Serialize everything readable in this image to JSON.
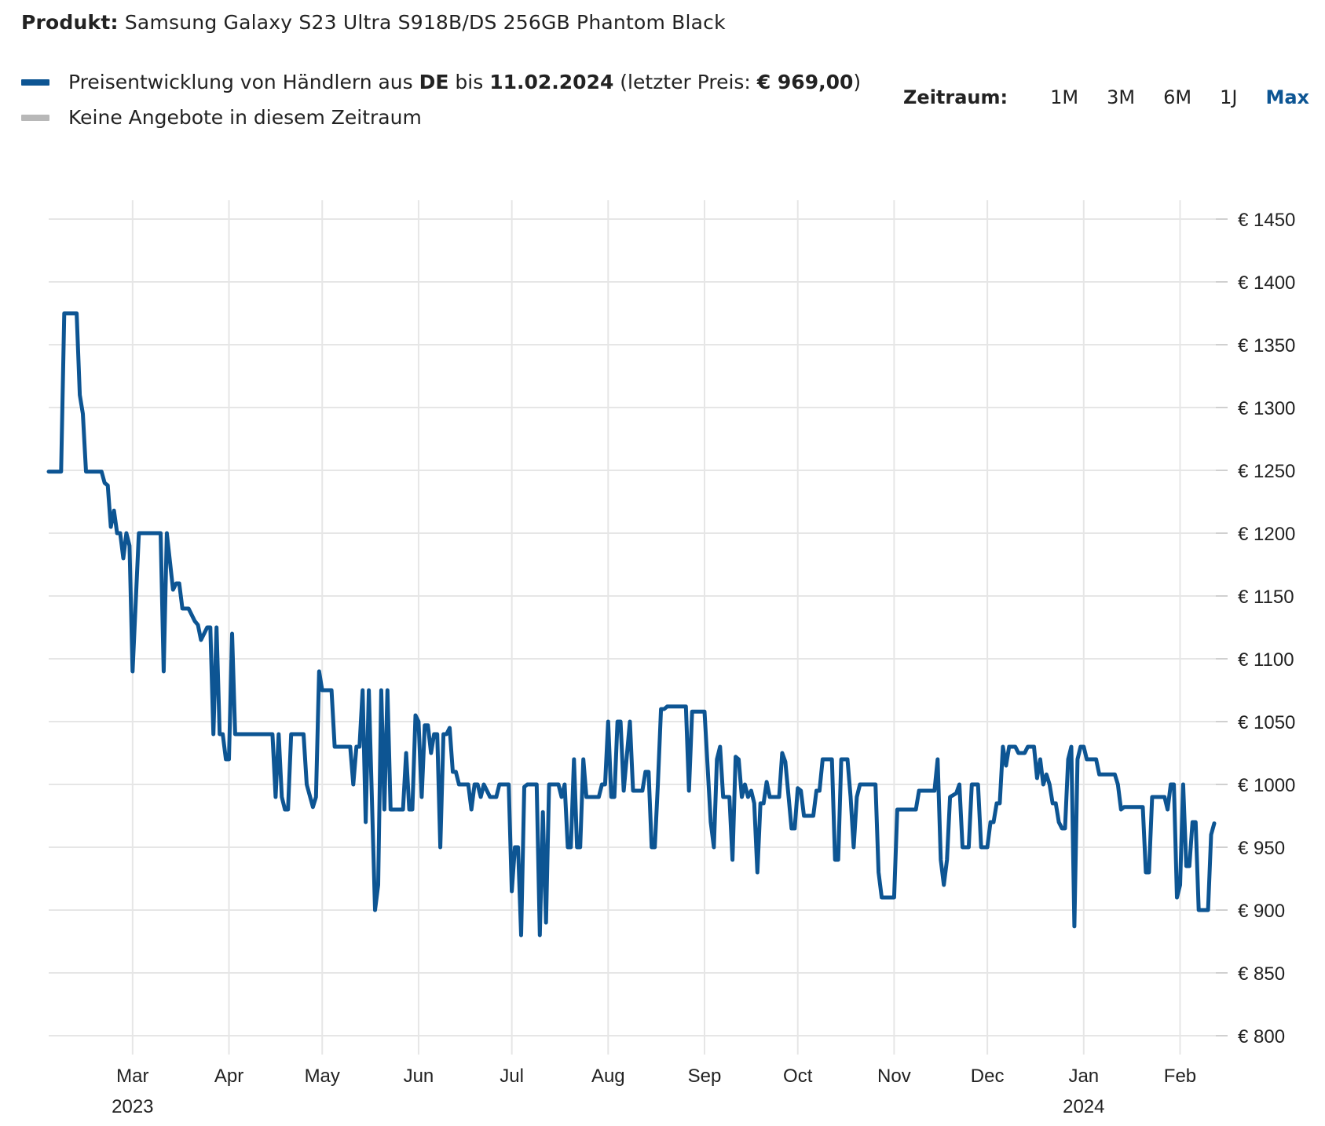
{
  "header": {
    "product_label": "Produkt:",
    "product_name": "Samsung Galaxy S23 Ultra S918B/DS 256GB Phantom Black"
  },
  "legend": {
    "items": [
      {
        "text_1": "Preisentwicklung von Händlern aus ",
        "bold_1": "DE",
        "text_2": " bis ",
        "bold_2": "11.02.2024",
        "text_3": " (letzter Preis: ",
        "bold_3": "€ 969,00",
        "text_4": ")",
        "color": "#0d5593"
      },
      {
        "text": "Keine Angebote in diesem Zeitraum",
        "color": "#b8b8b8"
      }
    ]
  },
  "range_selector": {
    "label": "Zeitraum:",
    "options": [
      "1M",
      "3M",
      "6M",
      "1J",
      "Max"
    ],
    "active": "Max"
  },
  "chart_data": {
    "type": "line",
    "x_type": "date",
    "xlim": [
      "2023-02-02",
      "2024-02-12"
    ],
    "ylim": [
      785,
      1465
    ],
    "y_ticks": [
      800,
      850,
      900,
      950,
      1000,
      1050,
      1100,
      1150,
      1200,
      1250,
      1300,
      1350,
      1400,
      1450
    ],
    "y_tick_labels": [
      "€ 800",
      "€ 850",
      "€ 900",
      "€ 950",
      "€ 1000",
      "€ 1050",
      "€ 1100",
      "€ 1150",
      "€ 1200",
      "€ 1250",
      "€ 1300",
      "€ 1350",
      "€ 1400",
      "€ 1450"
    ],
    "x_ticks": [
      "2023-03-01",
      "2023-04-01",
      "2023-05-01",
      "2023-06-01",
      "2023-07-01",
      "2023-08-01",
      "2023-09-01",
      "2023-10-01",
      "2023-11-01",
      "2023-12-01",
      "2024-01-01",
      "2024-02-01"
    ],
    "x_tick_labels": [
      "Mar",
      "Apr",
      "May",
      "Jun",
      "Jul",
      "Aug",
      "Sep",
      "Oct",
      "Nov",
      "Dec",
      "Jan",
      "Feb"
    ],
    "year_labels": [
      {
        "at": "2023-03-01",
        "label": "2023"
      },
      {
        "at": "2024-01-01",
        "label": "2024"
      }
    ],
    "grid": true,
    "series": [
      {
        "color": "#0d5593",
        "points": [
          [
            "2023-02-02",
            1249
          ],
          [
            "2023-02-06",
            1249
          ],
          [
            "2023-02-07",
            1375
          ],
          [
            "2023-02-11",
            1375
          ],
          [
            "2023-02-12",
            1310
          ],
          [
            "2023-02-13",
            1295
          ],
          [
            "2023-02-14",
            1249
          ],
          [
            "2023-02-19",
            1249
          ],
          [
            "2023-02-20",
            1240
          ],
          [
            "2023-02-21",
            1238
          ],
          [
            "2023-02-22",
            1205
          ],
          [
            "2023-02-23",
            1218
          ],
          [
            "2023-02-24",
            1200
          ],
          [
            "2023-02-25",
            1200
          ],
          [
            "2023-02-26",
            1180
          ],
          [
            "2023-02-27",
            1200
          ],
          [
            "2023-02-28",
            1190
          ],
          [
            "2023-03-01",
            1090
          ],
          [
            "2023-03-03",
            1200
          ],
          [
            "2023-03-10",
            1200
          ],
          [
            "2023-03-11",
            1090
          ],
          [
            "2023-03-12",
            1200
          ],
          [
            "2023-03-14",
            1155
          ],
          [
            "2023-03-15",
            1160
          ],
          [
            "2023-03-16",
            1160
          ],
          [
            "2023-03-17",
            1140
          ],
          [
            "2023-03-19",
            1140
          ],
          [
            "2023-03-21",
            1130
          ],
          [
            "2023-03-22",
            1127
          ],
          [
            "2023-03-23",
            1115
          ],
          [
            "2023-03-25",
            1125
          ],
          [
            "2023-03-26",
            1125
          ],
          [
            "2023-03-27",
            1040
          ],
          [
            "2023-03-28",
            1125
          ],
          [
            "2023-03-29",
            1040
          ],
          [
            "2023-03-30",
            1040
          ],
          [
            "2023-03-31",
            1020
          ],
          [
            "2023-04-01",
            1020
          ],
          [
            "2023-04-02",
            1120
          ],
          [
            "2023-04-03",
            1040
          ],
          [
            "2023-04-15",
            1040
          ],
          [
            "2023-04-16",
            990
          ],
          [
            "2023-04-17",
            1040
          ],
          [
            "2023-04-18",
            990
          ],
          [
            "2023-04-19",
            980
          ],
          [
            "2023-04-20",
            980
          ],
          [
            "2023-04-21",
            1040
          ],
          [
            "2023-04-25",
            1040
          ],
          [
            "2023-04-26",
            1000
          ],
          [
            "2023-04-28",
            982
          ],
          [
            "2023-04-29",
            990
          ],
          [
            "2023-04-30",
            1090
          ],
          [
            "2023-05-01",
            1075
          ],
          [
            "2023-05-04",
            1075
          ],
          [
            "2023-05-05",
            1030
          ],
          [
            "2023-05-10",
            1030
          ],
          [
            "2023-05-11",
            1000
          ],
          [
            "2023-05-12",
            1030
          ],
          [
            "2023-05-13",
            1030
          ],
          [
            "2023-05-14",
            1075
          ],
          [
            "2023-05-15",
            970
          ],
          [
            "2023-05-16",
            1075
          ],
          [
            "2023-05-18",
            900
          ],
          [
            "2023-05-19",
            920
          ],
          [
            "2023-05-20",
            1075
          ],
          [
            "2023-05-21",
            980
          ],
          [
            "2023-05-22",
            1075
          ],
          [
            "2023-05-23",
            980
          ],
          [
            "2023-05-27",
            980
          ],
          [
            "2023-05-28",
            1025
          ],
          [
            "2023-05-29",
            980
          ],
          [
            "2023-05-30",
            980
          ],
          [
            "2023-05-31",
            1055
          ],
          [
            "2023-06-01",
            1050
          ],
          [
            "2023-06-02",
            990
          ],
          [
            "2023-06-03",
            1047
          ],
          [
            "2023-06-04",
            1047
          ],
          [
            "2023-06-05",
            1025
          ],
          [
            "2023-06-06",
            1040
          ],
          [
            "2023-06-07",
            1040
          ],
          [
            "2023-06-08",
            950
          ],
          [
            "2023-06-09",
            1040
          ],
          [
            "2023-06-10",
            1040
          ],
          [
            "2023-06-11",
            1045
          ],
          [
            "2023-06-12",
            1010
          ],
          [
            "2023-06-13",
            1010
          ],
          [
            "2023-06-14",
            1000
          ],
          [
            "2023-06-17",
            1000
          ],
          [
            "2023-06-18",
            980
          ],
          [
            "2023-06-19",
            1000
          ],
          [
            "2023-06-20",
            1000
          ],
          [
            "2023-06-21",
            990
          ],
          [
            "2023-06-22",
            1000
          ],
          [
            "2023-06-24",
            990
          ],
          [
            "2023-06-26",
            990
          ],
          [
            "2023-06-27",
            1000
          ],
          [
            "2023-06-30",
            1000
          ],
          [
            "2023-07-01",
            915
          ],
          [
            "2023-07-02",
            950
          ],
          [
            "2023-07-03",
            950
          ],
          [
            "2023-07-04",
            880
          ],
          [
            "2023-07-05",
            998
          ],
          [
            "2023-07-06",
            1000
          ],
          [
            "2023-07-09",
            1000
          ],
          [
            "2023-07-10",
            880
          ],
          [
            "2023-07-11",
            978
          ],
          [
            "2023-07-12",
            890
          ],
          [
            "2023-07-13",
            1000
          ],
          [
            "2023-07-16",
            1000
          ],
          [
            "2023-07-17",
            990
          ],
          [
            "2023-07-18",
            1000
          ],
          [
            "2023-07-19",
            950
          ],
          [
            "2023-07-20",
            950
          ],
          [
            "2023-07-21",
            1020
          ],
          [
            "2023-07-22",
            950
          ],
          [
            "2023-07-23",
            950
          ],
          [
            "2023-07-24",
            1020
          ],
          [
            "2023-07-25",
            990
          ],
          [
            "2023-07-29",
            990
          ],
          [
            "2023-07-30",
            1000
          ],
          [
            "2023-07-31",
            1000
          ],
          [
            "2023-08-01",
            1050
          ],
          [
            "2023-08-02",
            990
          ],
          [
            "2023-08-03",
            990
          ],
          [
            "2023-08-04",
            1050
          ],
          [
            "2023-08-05",
            1050
          ],
          [
            "2023-08-06",
            995
          ],
          [
            "2023-08-08",
            1050
          ],
          [
            "2023-08-09",
            995
          ],
          [
            "2023-08-12",
            995
          ],
          [
            "2023-08-13",
            1010
          ],
          [
            "2023-08-14",
            1010
          ],
          [
            "2023-08-15",
            950
          ],
          [
            "2023-08-16",
            950
          ],
          [
            "2023-08-17",
            1000
          ],
          [
            "2023-08-18",
            1060
          ],
          [
            "2023-08-19",
            1060
          ],
          [
            "2023-08-20",
            1062
          ],
          [
            "2023-08-26",
            1062
          ],
          [
            "2023-08-27",
            995
          ],
          [
            "2023-08-28",
            1058
          ],
          [
            "2023-09-01",
            1058
          ],
          [
            "2023-09-03",
            970
          ],
          [
            "2023-09-04",
            950
          ],
          [
            "2023-09-05",
            1020
          ],
          [
            "2023-09-06",
            1030
          ],
          [
            "2023-09-07",
            990
          ],
          [
            "2023-09-09",
            990
          ],
          [
            "2023-09-10",
            940
          ],
          [
            "2023-09-11",
            1022
          ],
          [
            "2023-09-12",
            1020
          ],
          [
            "2023-09-13",
            990
          ],
          [
            "2023-09-14",
            1000
          ],
          [
            "2023-09-15",
            990
          ],
          [
            "2023-09-16",
            995
          ],
          [
            "2023-09-17",
            985
          ],
          [
            "2023-09-18",
            930
          ],
          [
            "2023-09-19",
            985
          ],
          [
            "2023-09-20",
            985
          ],
          [
            "2023-09-21",
            1002
          ],
          [
            "2023-09-22",
            990
          ],
          [
            "2023-09-25",
            990
          ],
          [
            "2023-09-26",
            1025
          ],
          [
            "2023-09-27",
            1018
          ],
          [
            "2023-09-29",
            965
          ],
          [
            "2023-09-30",
            965
          ],
          [
            "2023-10-01",
            997
          ],
          [
            "2023-10-02",
            995
          ],
          [
            "2023-10-03",
            975
          ],
          [
            "2023-10-06",
            975
          ],
          [
            "2023-10-07",
            995
          ],
          [
            "2023-10-08",
            995
          ],
          [
            "2023-10-09",
            1020
          ],
          [
            "2023-10-12",
            1020
          ],
          [
            "2023-10-13",
            940
          ],
          [
            "2023-10-14",
            940
          ],
          [
            "2023-10-15",
            1020
          ],
          [
            "2023-10-17",
            1020
          ],
          [
            "2023-10-18",
            990
          ],
          [
            "2023-10-19",
            950
          ],
          [
            "2023-10-20",
            990
          ],
          [
            "2023-10-21",
            1000
          ],
          [
            "2023-10-26",
            1000
          ],
          [
            "2023-10-27",
            930
          ],
          [
            "2023-10-28",
            910
          ],
          [
            "2023-11-01",
            910
          ],
          [
            "2023-11-02",
            980
          ],
          [
            "2023-11-08",
            980
          ],
          [
            "2023-11-09",
            995
          ],
          [
            "2023-11-14",
            995
          ],
          [
            "2023-11-15",
            1020
          ],
          [
            "2023-11-16",
            940
          ],
          [
            "2023-11-17",
            920
          ],
          [
            "2023-11-18",
            940
          ],
          [
            "2023-11-19",
            990
          ],
          [
            "2023-11-21",
            993
          ],
          [
            "2023-11-22",
            1000
          ],
          [
            "2023-11-23",
            950
          ],
          [
            "2023-11-25",
            950
          ],
          [
            "2023-11-26",
            1000
          ],
          [
            "2023-11-28",
            1000
          ],
          [
            "2023-11-29",
            950
          ],
          [
            "2023-12-01",
            950
          ],
          [
            "2023-12-02",
            970
          ],
          [
            "2023-12-03",
            970
          ],
          [
            "2023-12-04",
            985
          ],
          [
            "2023-12-05",
            985
          ],
          [
            "2023-12-06",
            1030
          ],
          [
            "2023-12-07",
            1015
          ],
          [
            "2023-12-08",
            1030
          ],
          [
            "2023-12-10",
            1030
          ],
          [
            "2023-12-11",
            1025
          ],
          [
            "2023-12-13",
            1025
          ],
          [
            "2023-12-14",
            1030
          ],
          [
            "2023-12-16",
            1030
          ],
          [
            "2023-12-17",
            1005
          ],
          [
            "2023-12-18",
            1020
          ],
          [
            "2023-12-19",
            1000
          ],
          [
            "2023-12-20",
            1008
          ],
          [
            "2023-12-21",
            1000
          ],
          [
            "2023-12-22",
            985
          ],
          [
            "2023-12-23",
            985
          ],
          [
            "2023-12-24",
            970
          ],
          [
            "2023-12-25",
            965
          ],
          [
            "2023-12-26",
            965
          ],
          [
            "2023-12-27",
            1020
          ],
          [
            "2023-12-28",
            1030
          ],
          [
            "2023-12-29",
            887
          ],
          [
            "2023-12-30",
            1020
          ],
          [
            "2023-12-31",
            1030
          ],
          [
            "2024-01-01",
            1030
          ],
          [
            "2024-01-02",
            1020
          ],
          [
            "2024-01-05",
            1020
          ],
          [
            "2024-01-06",
            1008
          ],
          [
            "2024-01-11",
            1008
          ],
          [
            "2024-01-12",
            1000
          ],
          [
            "2024-01-13",
            980
          ],
          [
            "2024-01-14",
            982
          ],
          [
            "2024-01-20",
            982
          ],
          [
            "2024-01-21",
            930
          ],
          [
            "2024-01-22",
            930
          ],
          [
            "2024-01-23",
            990
          ],
          [
            "2024-01-27",
            990
          ],
          [
            "2024-01-28",
            980
          ],
          [
            "2024-01-29",
            1000
          ],
          [
            "2024-01-30",
            1000
          ],
          [
            "2024-01-31",
            910
          ],
          [
            "2024-02-01",
            920
          ],
          [
            "2024-02-02",
            1000
          ],
          [
            "2024-02-03",
            935
          ],
          [
            "2024-02-04",
            935
          ],
          [
            "2024-02-05",
            970
          ],
          [
            "2024-02-06",
            970
          ],
          [
            "2024-02-07",
            900
          ],
          [
            "2024-02-10",
            900
          ],
          [
            "2024-02-11",
            960
          ],
          [
            "2024-02-12",
            969
          ]
        ]
      }
    ]
  }
}
